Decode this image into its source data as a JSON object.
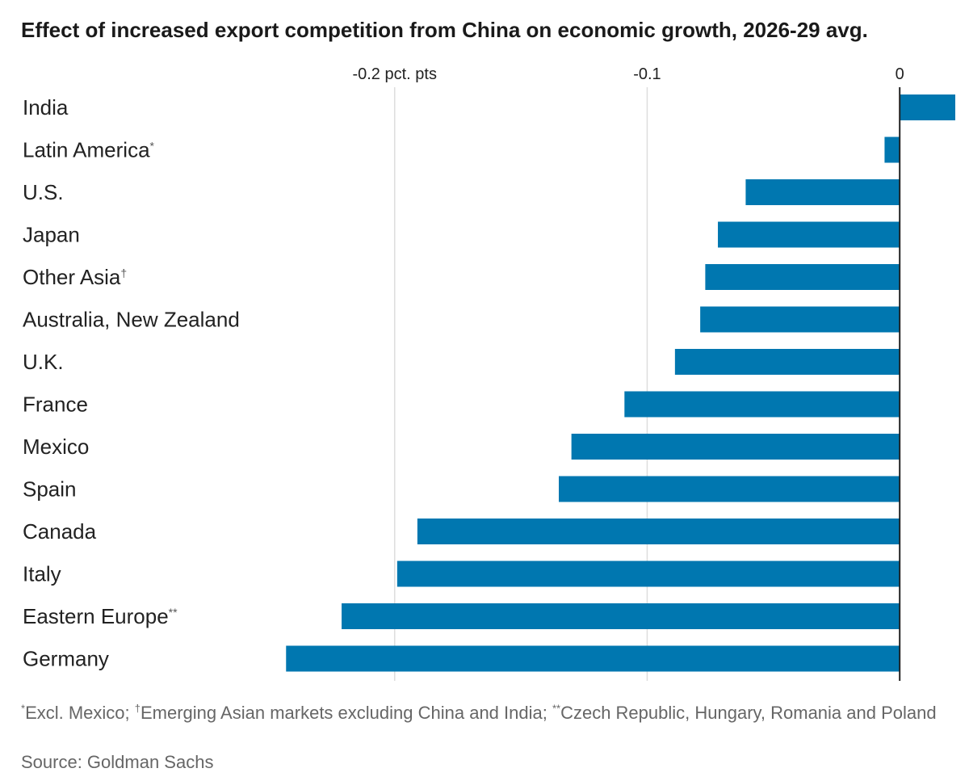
{
  "title": "Effect of increased export competition from China on economic growth, 2026-29 avg.",
  "chart_data": {
    "type": "bar",
    "orientation": "horizontal",
    "title": "Effect of increased export competition from China on economic growth, 2026-29 avg.",
    "xlabel": "",
    "ylabel": "",
    "x_unit": "pct. pts",
    "xlim": [
      -0.245,
      0.022
    ],
    "xticks": [
      {
        "value": -0.2,
        "label": "-0.2 pct. pts"
      },
      {
        "value": -0.1,
        "label": "-0.1"
      },
      {
        "value": 0,
        "label": "0"
      }
    ],
    "grid": true,
    "bar_color": "#0077b0",
    "categories": [
      {
        "label": "India",
        "mark": "",
        "value": 0.022
      },
      {
        "label": "Latin America",
        "mark": "*",
        "value": -0.006
      },
      {
        "label": "U.S.",
        "mark": "",
        "value": -0.061
      },
      {
        "label": "Japan",
        "mark": "",
        "value": -0.072
      },
      {
        "label": "Other Asia",
        "mark": "†",
        "value": -0.077
      },
      {
        "label": "Australia, New Zealand",
        "mark": "",
        "value": -0.079
      },
      {
        "label": "U.K.",
        "mark": "",
        "value": -0.089
      },
      {
        "label": "France",
        "mark": "",
        "value": -0.109
      },
      {
        "label": "Mexico",
        "mark": "",
        "value": -0.13
      },
      {
        "label": "Spain",
        "mark": "",
        "value": -0.135
      },
      {
        "label": "Canada",
        "mark": "",
        "value": -0.191
      },
      {
        "label": "Italy",
        "mark": "",
        "value": -0.199
      },
      {
        "label": "Eastern Europe",
        "mark": "**",
        "value": -0.221
      },
      {
        "label": "Germany",
        "mark": "",
        "value": -0.243
      }
    ]
  },
  "footnote": {
    "mark1": "*",
    "text1": "Excl. Mexico; ",
    "mark2": "†",
    "text2": "Emerging Asian markets excluding China and India; ",
    "mark3": "**",
    "text3": "Czech Republic, Hungary, Romania and Poland"
  },
  "source": "Source: Goldman Sachs"
}
